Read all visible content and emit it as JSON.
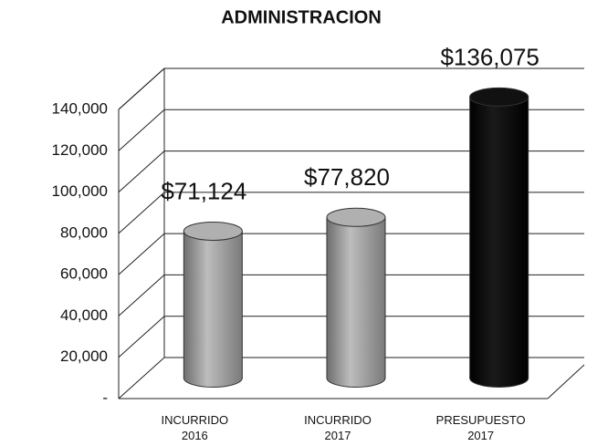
{
  "chart_data": {
    "type": "bar3d",
    "title": "ADMINISTRACION",
    "categories": [
      [
        "INCURRIDO",
        "2016"
      ],
      [
        "INCURRIDO",
        "2017"
      ],
      [
        "PRESUPUESTO",
        "2017"
      ]
    ],
    "values": [
      71124,
      77820,
      136075
    ],
    "value_labels": [
      "$71,124",
      "$77,820",
      "$136,075"
    ],
    "colors": [
      "#9a9a9a",
      "#9a9a9a",
      "#000000"
    ],
    "ylim": [
      0,
      140000
    ],
    "yticks": [
      {
        "value": 0,
        "label": "-"
      },
      {
        "value": 20000,
        "label": "20,000"
      },
      {
        "value": 40000,
        "label": "40,000"
      },
      {
        "value": 60000,
        "label": "60,000"
      },
      {
        "value": 80000,
        "label": "80,000"
      },
      {
        "value": 100000,
        "label": "100,000"
      },
      {
        "value": 120000,
        "label": "120,000"
      },
      {
        "value": 140000,
        "label": "140,000"
      }
    ],
    "grid": true
  }
}
